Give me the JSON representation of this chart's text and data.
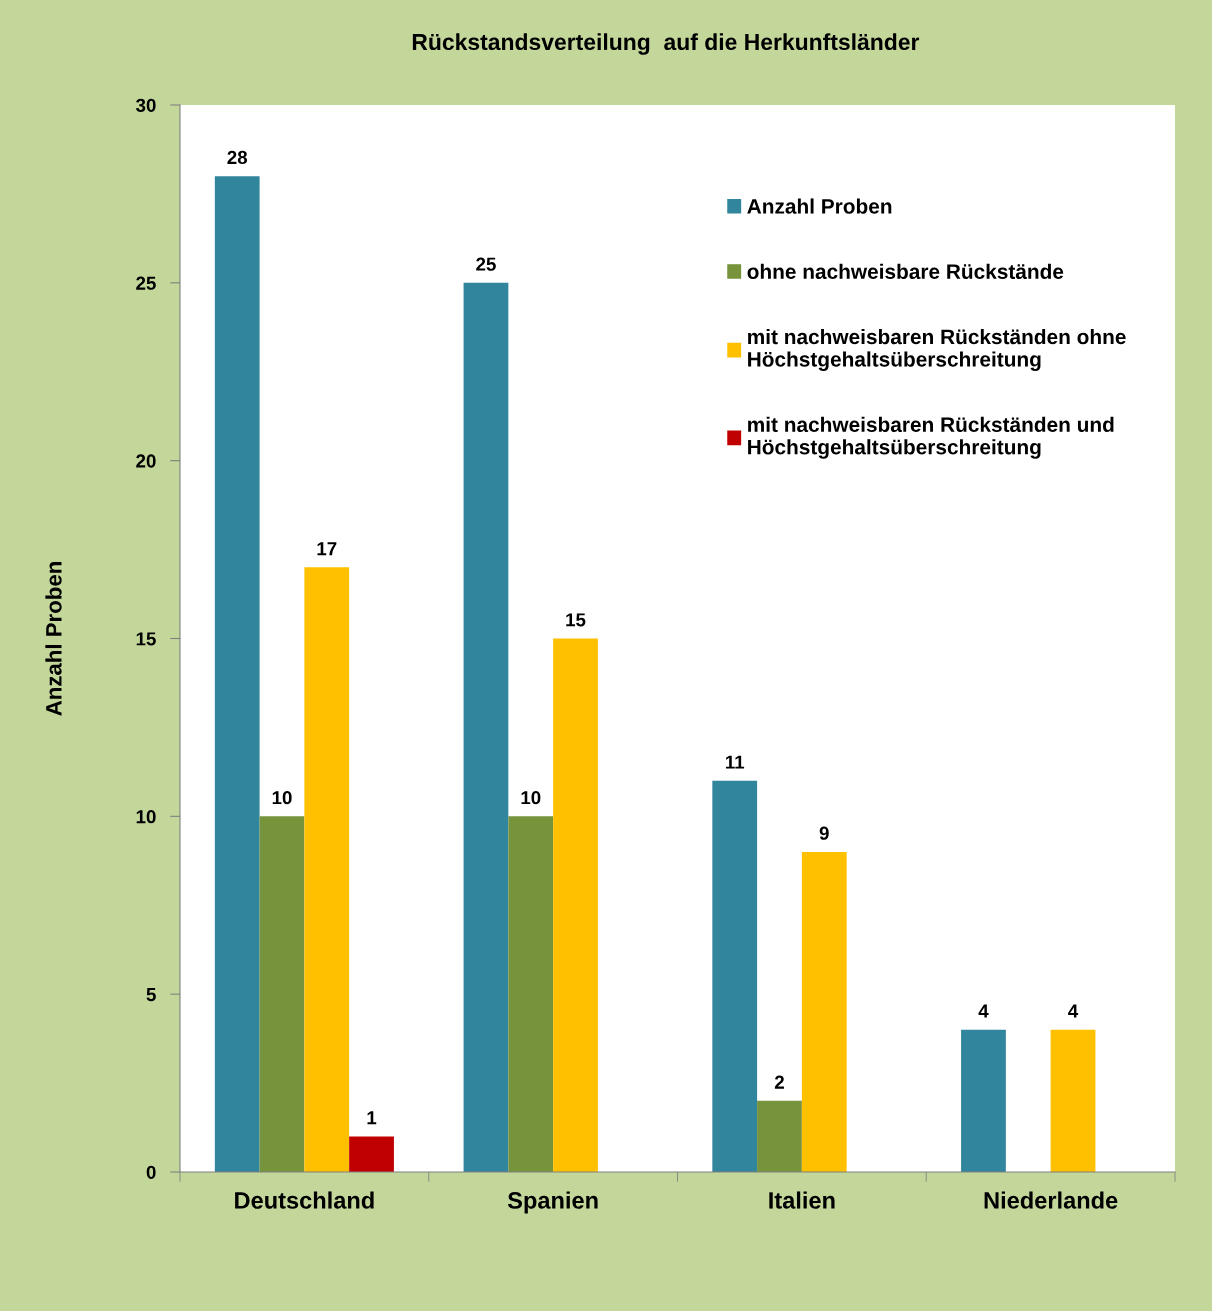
{
  "chart_data": {
    "type": "bar",
    "title": "Rückstandsverteilung  auf die Herkunftsländer",
    "ylabel": "Anzahl Proben",
    "categories": [
      "Deutschland",
      "Spanien",
      "Italien",
      "Niederlande"
    ],
    "series": [
      {
        "name": "Anzahl Proben",
        "color": "#31859c",
        "values": [
          28,
          25,
          11,
          4
        ]
      },
      {
        "name": "ohne nachweisbare Rückstände",
        "color": "#77933c",
        "values": [
          10,
          10,
          2,
          null
        ]
      },
      {
        "name": "mit nachweisbaren Rückständen ohne\nHöchstgehaltsüberschreitung",
        "color": "#ffc000",
        "values": [
          17,
          15,
          9,
          4
        ]
      },
      {
        "name": "mit nachweisbaren Rückständen und\nHöchstgehaltsüberschreitung",
        "color": "#c00000",
        "values": [
          1,
          null,
          null,
          null
        ]
      }
    ],
    "ylim": [
      0,
      30
    ],
    "yticks": [
      0,
      5,
      10,
      15,
      20,
      25,
      30
    ],
    "grid": false,
    "legend": "top right",
    "data_labels": true
  }
}
